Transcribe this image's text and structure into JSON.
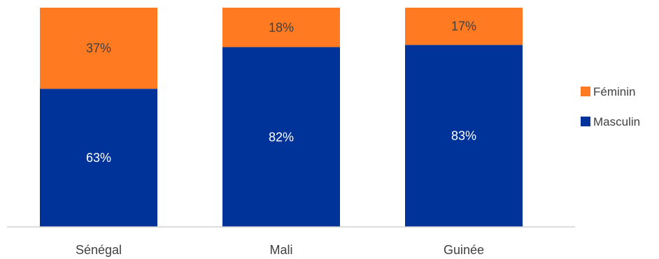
{
  "chart_data": {
    "type": "bar",
    "stacked": true,
    "percent": true,
    "categories": [
      "Sénégal",
      "Mali",
      "Guinée"
    ],
    "series": [
      {
        "name": "Masculin",
        "values": [
          63,
          82,
          83
        ],
        "labels": [
          "63%",
          "82%",
          "83%"
        ],
        "color": "#00339A",
        "label_color": "#FFFFFF"
      },
      {
        "name": "Féminin",
        "values": [
          37,
          18,
          17
        ],
        "labels": [
          "37%",
          "18%",
          "17%"
        ],
        "color": "#FF7A20",
        "label_color": "#404040"
      }
    ],
    "ylim": [
      0,
      100
    ],
    "grid": false,
    "legend": {
      "position": "right",
      "order": [
        "Féminin",
        "Masculin"
      ]
    }
  }
}
